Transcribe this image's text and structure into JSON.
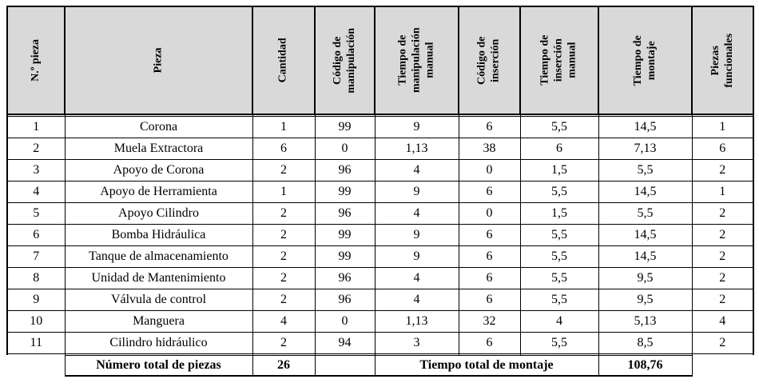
{
  "document": {
    "table": {
      "columns": [
        {
          "id": "num-pieza",
          "label": "N.º pieza"
        },
        {
          "id": "pieza",
          "label": "Pieza"
        },
        {
          "id": "cantidad",
          "label": "Cantidad"
        },
        {
          "id": "codigo-manipulacion",
          "label": "Código de\nmanipulación"
        },
        {
          "id": "tiempo-manipulacion",
          "label": "Tiempo de\nmanipulación\nmanual"
        },
        {
          "id": "codigo-insercion",
          "label": "Código de\ninserción"
        },
        {
          "id": "tiempo-insercion",
          "label": "Tiempo de\ninserción\nmanual"
        },
        {
          "id": "tiempo-montaje",
          "label": "Tiempo de\nmontaje"
        },
        {
          "id": "piezas-funcionales",
          "label": "Piezas\nfuncionales"
        }
      ],
      "rows": [
        [
          "1",
          "Corona",
          "1",
          "99",
          "9",
          "6",
          "5,5",
          "14,5",
          "1"
        ],
        [
          "2",
          "Muela Extractora",
          "6",
          "0",
          "1,13",
          "38",
          "6",
          "7,13",
          "6"
        ],
        [
          "3",
          "Apoyo de Corona",
          "2",
          "96",
          "4",
          "0",
          "1,5",
          "5,5",
          "2"
        ],
        [
          "4",
          "Apoyo de Herramienta",
          "1",
          "99",
          "9",
          "6",
          "5,5",
          "14,5",
          "1"
        ],
        [
          "5",
          "Apoyo Cilindro",
          "2",
          "96",
          "4",
          "0",
          "1,5",
          "5,5",
          "2"
        ],
        [
          "6",
          "Bomba Hidráulica",
          "2",
          "99",
          "9",
          "6",
          "5,5",
          "14,5",
          "2"
        ],
        [
          "7",
          "Tanque de almacenamiento",
          "2",
          "99",
          "9",
          "6",
          "5,5",
          "14,5",
          "2"
        ],
        [
          "8",
          "Unidad de Mantenimiento",
          "2",
          "96",
          "4",
          "6",
          "5,5",
          "9,5",
          "2"
        ],
        [
          "9",
          "Válvula de control",
          "2",
          "96",
          "4",
          "6",
          "5,5",
          "9,5",
          "2"
        ],
        [
          "10",
          "Manguera",
          "4",
          "0",
          "1,13",
          "32",
          "4",
          "5,13",
          "4"
        ],
        [
          "11",
          "Cilindro hidráulico",
          "2",
          "94",
          "3",
          "6",
          "5,5",
          "8,5",
          "2"
        ]
      ],
      "footer": {
        "total_piezas_label": "Número total de piezas",
        "total_piezas_value": "26",
        "total_montaje_label": "Tiempo total de montaje",
        "total_montaje_value": "108,76"
      },
      "colors": {
        "header_bg": "#d9d9d9",
        "border": "#000000",
        "page_bg": "#ffffff"
      }
    }
  }
}
